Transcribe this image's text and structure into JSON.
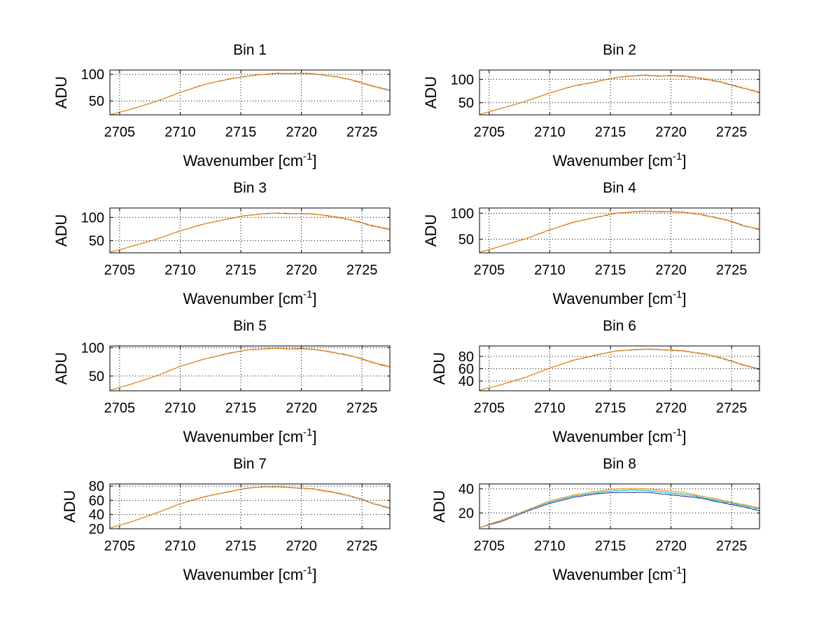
{
  "chart_data": [
    {
      "type": "line",
      "title": "Bin 1",
      "xlabel": "Wavenumber [cm",
      "xlabel_sup": "-1",
      "xlabel_end": "]",
      "ylabel": "ADU",
      "xlim": [
        2704.2,
        2727.3
      ],
      "ylim": [
        24,
        108
      ],
      "xticks": [
        2705,
        2710,
        2715,
        2720,
        2725
      ],
      "yticks": [
        50,
        100
      ],
      "grid": true,
      "series": [
        {
          "color": "#3d3d6b",
          "x": [
            2704.2,
            2706,
            2708,
            2710,
            2712,
            2714,
            2716,
            2717.5,
            2718,
            2719,
            2720,
            2721,
            2722,
            2723,
            2724,
            2725,
            2726,
            2727.3
          ],
          "y": [
            24,
            35,
            49,
            66,
            81,
            91,
            98,
            101,
            102,
            101,
            102,
            101,
            98,
            95,
            90,
            84,
            77,
            70
          ]
        },
        {
          "color": "#ff8800",
          "x": [
            2704.2,
            2706,
            2708,
            2710,
            2712,
            2714,
            2716,
            2717.5,
            2718,
            2719,
            2720,
            2721,
            2722,
            2723,
            2724,
            2725,
            2726,
            2727.3
          ],
          "y": [
            24,
            35,
            49,
            66,
            81,
            91,
            98,
            101,
            102,
            101,
            102,
            101,
            98,
            95,
            90,
            84,
            77,
            70
          ]
        }
      ]
    },
    {
      "type": "line",
      "title": "Bin 2",
      "xlabel": "Wavenumber [cm",
      "xlabel_sup": "-1",
      "xlabel_end": "]",
      "ylabel": "ADU",
      "xlim": [
        2704.2,
        2727.3
      ],
      "ylim": [
        24,
        120
      ],
      "xticks": [
        2705,
        2710,
        2715,
        2720,
        2725
      ],
      "yticks": [
        50,
        100
      ],
      "grid": true,
      "series": [
        {
          "color": "#3d3d6b",
          "x": [
            2704.2,
            2706,
            2708,
            2710,
            2712,
            2714,
            2715.5,
            2717,
            2718,
            2719,
            2720,
            2721,
            2722,
            2723,
            2724,
            2725,
            2726,
            2727.3
          ],
          "y": [
            25,
            38,
            53,
            71,
            86,
            96,
            104,
            108,
            109,
            107,
            108,
            107,
            104,
            100,
            95,
            88,
            81,
            72
          ]
        },
        {
          "color": "#ff8800",
          "x": [
            2704.2,
            2706,
            2708,
            2710,
            2712,
            2714,
            2715.5,
            2717,
            2718,
            2719,
            2720,
            2721,
            2722,
            2723,
            2724,
            2725,
            2726,
            2727.3
          ],
          "y": [
            25,
            38,
            53,
            71,
            86,
            96,
            104,
            108,
            109,
            107,
            108,
            107,
            104,
            100,
            95,
            88,
            81,
            72
          ]
        }
      ]
    },
    {
      "type": "line",
      "title": "Bin 3",
      "xlabel": "Wavenumber [cm",
      "xlabel_sup": "-1",
      "xlabel_end": "]",
      "ylabel": "ADU",
      "xlim": [
        2704.2,
        2727.3
      ],
      "ylim": [
        24,
        120
      ],
      "xticks": [
        2705,
        2710,
        2715,
        2720,
        2725
      ],
      "yticks": [
        50,
        100
      ],
      "grid": true,
      "series": [
        {
          "color": "#3d3d6b",
          "x": [
            2704.2,
            2706,
            2708,
            2710,
            2712,
            2714,
            2715.5,
            2717,
            2718,
            2719,
            2720,
            2721,
            2722,
            2723,
            2724,
            2725,
            2726,
            2727.3
          ],
          "y": [
            25,
            38,
            53,
            71,
            86,
            97,
            104,
            108,
            109,
            108,
            108,
            107,
            104,
            100,
            95,
            88,
            81,
            74
          ]
        },
        {
          "color": "#ff8800",
          "x": [
            2704.2,
            2706,
            2708,
            2710,
            2712,
            2714,
            2715.5,
            2717,
            2718,
            2719,
            2720,
            2721,
            2722,
            2723,
            2724,
            2725,
            2726,
            2727.3
          ],
          "y": [
            25,
            38,
            53,
            71,
            86,
            97,
            104,
            108,
            109,
            108,
            108,
            107,
            104,
            100,
            95,
            88,
            81,
            74
          ]
        }
      ]
    },
    {
      "type": "line",
      "title": "Bin 4",
      "xlabel": "Wavenumber [cm",
      "xlabel_sup": "-1",
      "xlabel_end": "]",
      "ylabel": "ADU",
      "xlim": [
        2704.2,
        2727.3
      ],
      "ylim": [
        24,
        110
      ],
      "xticks": [
        2705,
        2710,
        2715,
        2720,
        2725
      ],
      "yticks": [
        50,
        100
      ],
      "grid": true,
      "series": [
        {
          "color": "#3d3d6b",
          "x": [
            2704.2,
            2706,
            2708,
            2710,
            2712,
            2714,
            2715.5,
            2717,
            2718,
            2719,
            2720,
            2721,
            2722,
            2723,
            2724,
            2725,
            2726,
            2727.3
          ],
          "y": [
            25,
            37,
            51,
            68,
            83,
            93,
            100,
            103,
            104,
            103,
            103,
            102,
            99,
            95,
            90,
            84,
            76,
            69
          ]
        },
        {
          "color": "#ff8800",
          "x": [
            2704.2,
            2706,
            2708,
            2710,
            2712,
            2714,
            2715.5,
            2717,
            2718,
            2719,
            2720,
            2721,
            2722,
            2723,
            2724,
            2725,
            2726,
            2727.3
          ],
          "y": [
            25,
            37,
            51,
            68,
            83,
            93,
            100,
            103,
            104,
            103,
            103,
            102,
            99,
            95,
            90,
            84,
            76,
            69
          ]
        }
      ]
    },
    {
      "type": "line",
      "title": "Bin 5",
      "xlabel": "Wavenumber [cm",
      "xlabel_sup": "-1",
      "xlabel_end": "]",
      "ylabel": "ADU",
      "xlim": [
        2704.2,
        2727.3
      ],
      "ylim": [
        24,
        103
      ],
      "xticks": [
        2705,
        2710,
        2715,
        2720,
        2725
      ],
      "yticks": [
        50,
        100
      ],
      "grid": true,
      "series": [
        {
          "color": "#3d3d6b",
          "x": [
            2704.2,
            2706,
            2708,
            2710,
            2712,
            2714,
            2715.5,
            2717,
            2718,
            2719,
            2720,
            2721,
            2722,
            2723,
            2724,
            2725,
            2726,
            2727.3
          ],
          "y": [
            25,
            36,
            50,
            67,
            80,
            90,
            96,
            98,
            99,
            98,
            98,
            97,
            94,
            90,
            86,
            80,
            73,
            66
          ]
        },
        {
          "color": "#ff8800",
          "x": [
            2704.2,
            2706,
            2708,
            2710,
            2712,
            2714,
            2715.5,
            2717,
            2718,
            2719,
            2720,
            2721,
            2722,
            2723,
            2724,
            2725,
            2726,
            2727.3
          ],
          "y": [
            25,
            36,
            50,
            67,
            80,
            90,
            96,
            98,
            99,
            98,
            98,
            97,
            94,
            90,
            86,
            80,
            73,
            66
          ]
        }
      ]
    },
    {
      "type": "line",
      "title": "Bin 6",
      "xlabel": "Wavenumber [cm",
      "xlabel_sup": "-1",
      "xlabel_end": "]",
      "ylabel": "ADU",
      "xlim": [
        2704.2,
        2727.3
      ],
      "ylim": [
        24,
        97
      ],
      "xticks": [
        2705,
        2710,
        2715,
        2720,
        2725
      ],
      "yticks": [
        40,
        60,
        80
      ],
      "grid": true,
      "series": [
        {
          "color": "#3d3d6b",
          "x": [
            2704.2,
            2706,
            2708,
            2710,
            2712,
            2714,
            2715.5,
            2717,
            2718,
            2719,
            2720,
            2721,
            2722,
            2723,
            2724,
            2725,
            2726,
            2727.3
          ],
          "y": [
            25,
            34,
            46,
            61,
            74,
            83,
            89,
            91,
            92,
            91,
            90,
            89,
            86,
            83,
            78,
            72,
            66,
            59
          ]
        },
        {
          "color": "#ff8800",
          "x": [
            2704.2,
            2706,
            2708,
            2710,
            2712,
            2714,
            2715.5,
            2717,
            2718,
            2719,
            2720,
            2721,
            2722,
            2723,
            2724,
            2725,
            2726,
            2727.3
          ],
          "y": [
            25,
            34,
            46,
            61,
            74,
            83,
            89,
            91,
            92,
            91,
            90,
            89,
            86,
            83,
            78,
            72,
            66,
            59
          ]
        }
      ]
    },
    {
      "type": "line",
      "title": "Bin 7",
      "xlabel": "Wavenumber [cm",
      "xlabel_sup": "-1",
      "xlabel_end": "]",
      "ylabel": "ADU",
      "xlim": [
        2704.2,
        2727.3
      ],
      "ylim": [
        20,
        83
      ],
      "xticks": [
        2705,
        2710,
        2715,
        2720,
        2725
      ],
      "yticks": [
        20,
        40,
        60,
        80
      ],
      "grid": true,
      "series": [
        {
          "color": "#3d3d6b",
          "x": [
            2704.2,
            2706,
            2708,
            2710,
            2712,
            2714,
            2715.5,
            2717,
            2718,
            2719,
            2720,
            2721,
            2722,
            2723,
            2724,
            2725,
            2726,
            2727.3
          ],
          "y": [
            21,
            30,
            42,
            55,
            65,
            72,
            77,
            79,
            79,
            78,
            77,
            76,
            73,
            70,
            66,
            61,
            55,
            49
          ]
        },
        {
          "color": "#ff8800",
          "x": [
            2704.2,
            2706,
            2708,
            2710,
            2712,
            2714,
            2715.5,
            2717,
            2718,
            2719,
            2720,
            2721,
            2722,
            2723,
            2724,
            2725,
            2726,
            2727.3
          ],
          "y": [
            21,
            30,
            42,
            55,
            65,
            72,
            77,
            79,
            79,
            78,
            77,
            76,
            73,
            70,
            66,
            61,
            55,
            49
          ]
        }
      ]
    },
    {
      "type": "line",
      "title": "Bin 8",
      "xlabel": "Wavenumber [cm",
      "xlabel_sup": "-1",
      "xlabel_end": "]",
      "ylabel": "ADU",
      "xlim": [
        2704.2,
        2727.3
      ],
      "ylim": [
        7,
        44
      ],
      "xticks": [
        2705,
        2710,
        2715,
        2720,
        2725
      ],
      "yticks": [
        20,
        40
      ],
      "grid": true,
      "series": [
        {
          "color": "#1f3a93",
          "x": [
            2704.2,
            2706,
            2708,
            2710,
            2712,
            2714,
            2715.5,
            2717,
            2718,
            2719,
            2720,
            2721,
            2722,
            2723,
            2724,
            2725,
            2726,
            2727.3
          ],
          "y": [
            8,
            13,
            21,
            28,
            33,
            36,
            37,
            37,
            37,
            36,
            35,
            34,
            33,
            31,
            29,
            27,
            25,
            22
          ]
        },
        {
          "color": "#00b7c3",
          "x": [
            2704.2,
            2706,
            2708,
            2710,
            2712,
            2714,
            2715.5,
            2717,
            2718,
            2719,
            2720,
            2721,
            2722,
            2723,
            2724,
            2725,
            2726,
            2727.3
          ],
          "y": [
            8,
            14,
            22,
            29,
            34,
            37,
            38.5,
            39,
            38.5,
            37.5,
            36.5,
            35.5,
            34,
            32,
            30,
            28,
            26,
            23.5
          ]
        },
        {
          "color": "#ff8800",
          "x": [
            2704.2,
            2706,
            2708,
            2710,
            2712,
            2714,
            2715.5,
            2717,
            2718,
            2719,
            2720,
            2721,
            2722,
            2723,
            2724,
            2725,
            2726,
            2727.3
          ],
          "y": [
            8,
            14,
            22,
            30,
            35,
            38,
            40,
            40,
            40,
            39,
            38,
            37,
            35,
            33,
            31,
            29,
            27,
            24
          ]
        }
      ]
    }
  ]
}
